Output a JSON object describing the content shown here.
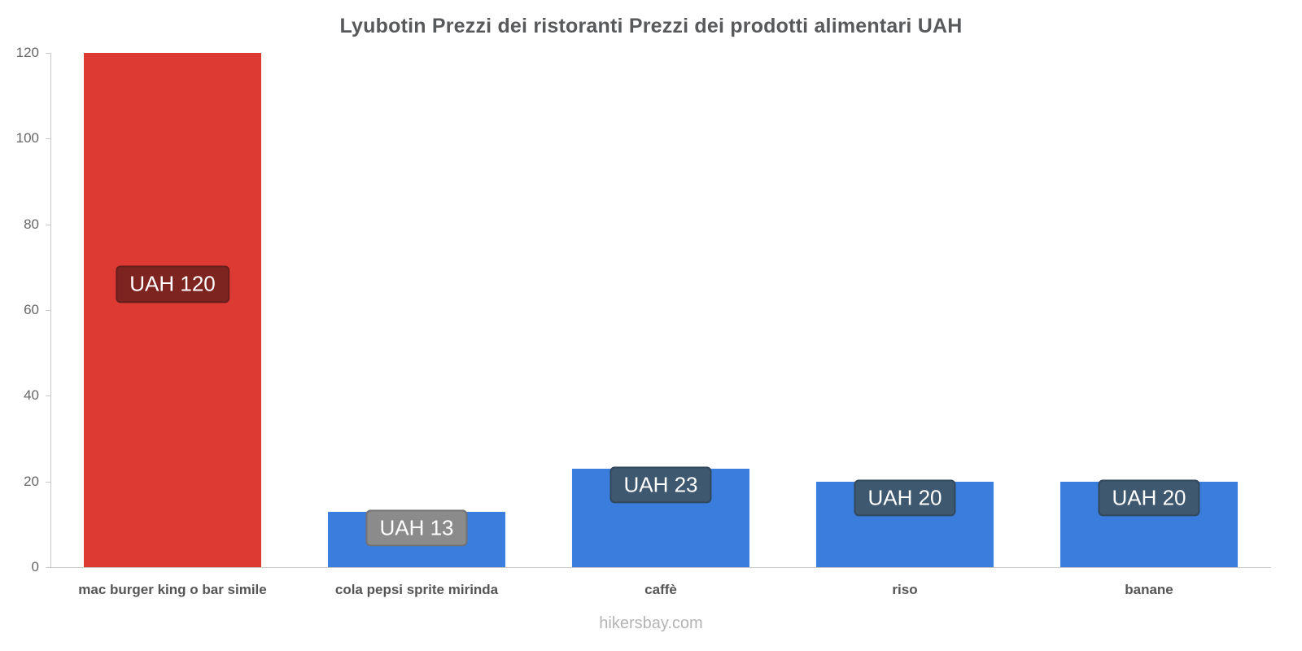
{
  "chart_data": {
    "type": "bar",
    "title": "Lyubotin Prezzi dei ristoranti Prezzi dei prodotti alimentari UAH",
    "categories": [
      "mac burger king o bar simile",
      "cola pepsi sprite mirinda",
      "caffè",
      "riso",
      "banane"
    ],
    "values": [
      120,
      13,
      23,
      20,
      20
    ],
    "labels": [
      "UAH 120",
      "UAH 13",
      "UAH 23",
      "UAH 20",
      "UAH 20"
    ],
    "bar_colors": [
      "#dd3a33",
      "#3b7ddd",
      "#3b7ddd",
      "#3b7ddd",
      "#3b7ddd"
    ],
    "badge_colors": [
      "#7d2421",
      "#8b8b8b",
      "#3e586f",
      "#3e586f",
      "#3e586f"
    ],
    "xlabel": "",
    "ylabel": "",
    "ylim": [
      0,
      120
    ],
    "yticks": [
      0,
      20,
      40,
      60,
      80,
      100,
      120
    ],
    "grid": false,
    "legend": false,
    "currency": "UAH"
  },
  "footer": {
    "text": "hikersbay.com"
  }
}
